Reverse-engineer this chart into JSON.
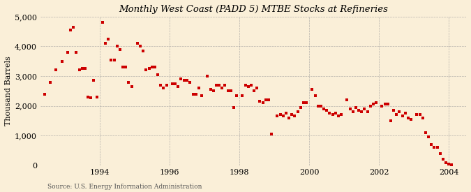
{
  "title": "Monthly West Coast (PADD 5) MTBE Stocks at Refineries",
  "ylabel": "Thousand Barrels",
  "source": "Source: U.S. Energy Information Administration",
  "background_color": "#faefd8",
  "marker_color": "#cc0000",
  "ylim": [
    0,
    5000
  ],
  "yticks": [
    0,
    1000,
    2000,
    3000,
    4000,
    5000
  ],
  "xlim": [
    1992.3,
    2004.5
  ],
  "xticks": [
    1994,
    1996,
    1998,
    2000,
    2002,
    2004
  ],
  "data": [
    [
      1992.42,
      2400
    ],
    [
      1992.58,
      2800
    ],
    [
      1992.75,
      3200
    ],
    [
      1992.92,
      3500
    ],
    [
      1993.08,
      3800
    ],
    [
      1993.17,
      4550
    ],
    [
      1993.25,
      4650
    ],
    [
      1993.33,
      3800
    ],
    [
      1993.42,
      3200
    ],
    [
      1993.5,
      3250
    ],
    [
      1993.58,
      3250
    ],
    [
      1993.67,
      2300
    ],
    [
      1993.75,
      2280
    ],
    [
      1993.83,
      2850
    ],
    [
      1993.92,
      2300
    ],
    [
      1994.08,
      4800
    ],
    [
      1994.17,
      4100
    ],
    [
      1994.25,
      4250
    ],
    [
      1994.33,
      3550
    ],
    [
      1994.42,
      3550
    ],
    [
      1994.5,
      4000
    ],
    [
      1994.58,
      3900
    ],
    [
      1994.67,
      3300
    ],
    [
      1994.75,
      3300
    ],
    [
      1994.83,
      2800
    ],
    [
      1994.92,
      2650
    ],
    [
      1995.08,
      4100
    ],
    [
      1995.17,
      4000
    ],
    [
      1995.25,
      3850
    ],
    [
      1995.33,
      3200
    ],
    [
      1995.42,
      3250
    ],
    [
      1995.5,
      3300
    ],
    [
      1995.58,
      3300
    ],
    [
      1995.67,
      3050
    ],
    [
      1995.75,
      2700
    ],
    [
      1995.83,
      2600
    ],
    [
      1995.92,
      2700
    ],
    [
      1996.08,
      2750
    ],
    [
      1996.17,
      2750
    ],
    [
      1996.25,
      2650
    ],
    [
      1996.33,
      2900
    ],
    [
      1996.42,
      2850
    ],
    [
      1996.5,
      2850
    ],
    [
      1996.58,
      2800
    ],
    [
      1996.67,
      2400
    ],
    [
      1996.75,
      2400
    ],
    [
      1996.83,
      2600
    ],
    [
      1996.92,
      2350
    ],
    [
      1997.08,
      3000
    ],
    [
      1997.17,
      2550
    ],
    [
      1997.25,
      2500
    ],
    [
      1997.33,
      2700
    ],
    [
      1997.42,
      2700
    ],
    [
      1997.5,
      2600
    ],
    [
      1997.58,
      2700
    ],
    [
      1997.67,
      2500
    ],
    [
      1997.75,
      2500
    ],
    [
      1997.83,
      1950
    ],
    [
      1997.92,
      2350
    ],
    [
      1998.08,
      2350
    ],
    [
      1998.17,
      2700
    ],
    [
      1998.25,
      2650
    ],
    [
      1998.33,
      2700
    ],
    [
      1998.42,
      2500
    ],
    [
      1998.5,
      2600
    ],
    [
      1998.58,
      2150
    ],
    [
      1998.67,
      2100
    ],
    [
      1998.75,
      2200
    ],
    [
      1998.83,
      2200
    ],
    [
      1998.92,
      1050
    ],
    [
      1999.08,
      1650
    ],
    [
      1999.17,
      1700
    ],
    [
      1999.25,
      1650
    ],
    [
      1999.33,
      1750
    ],
    [
      1999.42,
      1600
    ],
    [
      1999.5,
      1700
    ],
    [
      1999.58,
      1650
    ],
    [
      1999.67,
      1800
    ],
    [
      1999.75,
      1950
    ],
    [
      1999.83,
      2100
    ],
    [
      1999.92,
      2100
    ],
    [
      2000.08,
      2550
    ],
    [
      2000.17,
      2350
    ],
    [
      2000.25,
      1980
    ],
    [
      2000.33,
      2000
    ],
    [
      2000.42,
      1900
    ],
    [
      2000.5,
      1850
    ],
    [
      2000.58,
      1750
    ],
    [
      2000.67,
      1700
    ],
    [
      2000.75,
      1750
    ],
    [
      2000.83,
      1650
    ],
    [
      2000.92,
      1700
    ],
    [
      2001.08,
      2200
    ],
    [
      2001.17,
      1900
    ],
    [
      2001.25,
      1800
    ],
    [
      2001.33,
      1950
    ],
    [
      2001.42,
      1850
    ],
    [
      2001.5,
      1800
    ],
    [
      2001.58,
      1900
    ],
    [
      2001.67,
      1800
    ],
    [
      2001.75,
      2000
    ],
    [
      2001.83,
      2050
    ],
    [
      2001.92,
      2100
    ],
    [
      2002.08,
      2000
    ],
    [
      2002.17,
      2050
    ],
    [
      2002.25,
      2050
    ],
    [
      2002.33,
      1500
    ],
    [
      2002.42,
      1850
    ],
    [
      2002.5,
      1700
    ],
    [
      2002.58,
      1800
    ],
    [
      2002.67,
      1650
    ],
    [
      2002.75,
      1750
    ],
    [
      2002.83,
      1600
    ],
    [
      2002.92,
      1550
    ],
    [
      2003.08,
      1700
    ],
    [
      2003.17,
      1700
    ],
    [
      2003.25,
      1600
    ],
    [
      2003.33,
      1100
    ],
    [
      2003.42,
      950
    ],
    [
      2003.5,
      700
    ],
    [
      2003.58,
      600
    ],
    [
      2003.67,
      600
    ],
    [
      2003.75,
      400
    ],
    [
      2003.83,
      200
    ],
    [
      2003.92,
      80
    ],
    [
      2004.0,
      50
    ],
    [
      2004.08,
      20
    ]
  ]
}
